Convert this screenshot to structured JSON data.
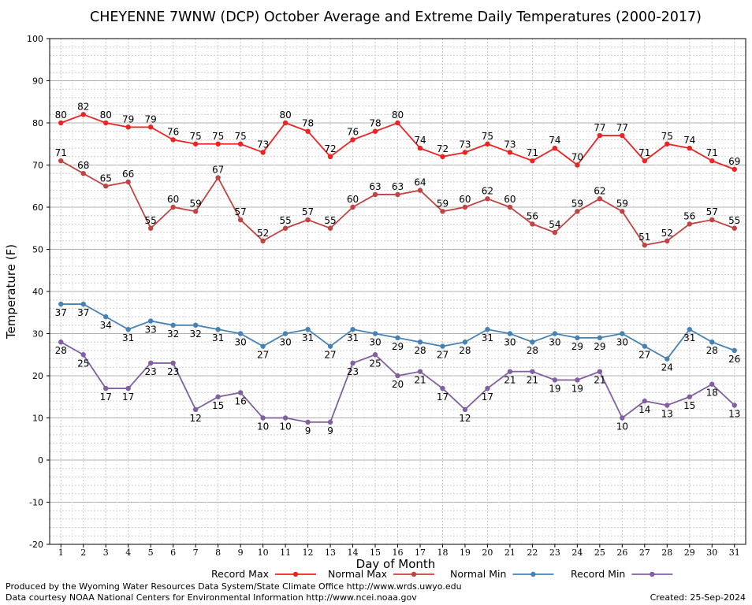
{
  "chart_data": {
    "type": "line",
    "title": "CHEYENNE 7WNW (DCP) October Average and Extreme Daily Temperatures (2000-2017)",
    "xlabel": "Day of Month",
    "ylabel": "Temperature (F)",
    "ylim": [
      -20,
      100
    ],
    "yticks": [
      -20,
      -10,
      0,
      10,
      20,
      30,
      40,
      50,
      60,
      70,
      80,
      90,
      100
    ],
    "x": [
      1,
      2,
      3,
      4,
      5,
      6,
      7,
      8,
      9,
      10,
      11,
      12,
      13,
      14,
      15,
      16,
      17,
      18,
      19,
      20,
      21,
      22,
      23,
      24,
      25,
      26,
      27,
      28,
      29,
      30,
      31
    ],
    "xlim": [
      0.5,
      31.5
    ],
    "grid": true,
    "legend_position": "bottom",
    "series": [
      {
        "name": "Record Max",
        "color": "#ee2222",
        "values": [
          80,
          82,
          80,
          79,
          79,
          76,
          75,
          75,
          75,
          73,
          80,
          78,
          72,
          76,
          78,
          80,
          74,
          72,
          73,
          75,
          73,
          71,
          74,
          70,
          77,
          77,
          71,
          75,
          74,
          71,
          69
        ]
      },
      {
        "name": "Normal Max",
        "color": "#c04444",
        "values": [
          71,
          68,
          65,
          66,
          55,
          60,
          59,
          67,
          57,
          52,
          55,
          57,
          55,
          60,
          63,
          63,
          64,
          59,
          60,
          62,
          60,
          56,
          54,
          59,
          62,
          59,
          51,
          52,
          56,
          57,
          55
        ]
      },
      {
        "name": "Normal Min",
        "color": "#4682b4",
        "values": [
          37,
          37,
          34,
          31,
          33,
          32,
          32,
          31,
          30,
          27,
          30,
          31,
          27,
          31,
          30,
          29,
          28,
          27,
          28,
          31,
          30,
          28,
          30,
          29,
          29,
          30,
          27,
          24,
          31,
          28,
          26
        ]
      },
      {
        "name": "Record Min",
        "color": "#8060a0",
        "values": [
          28,
          25,
          17,
          17,
          23,
          23,
          12,
          15,
          16,
          10,
          10,
          9,
          9,
          23,
          25,
          20,
          21,
          17,
          12,
          17,
          21,
          21,
          19,
          19,
          21,
          10,
          14,
          13,
          15,
          18,
          13
        ]
      }
    ]
  },
  "footer": {
    "produced_by": "Produced by the Wyoming Water Resources Data System/State Climate Office http://www.wrds.uwyo.edu",
    "courtesy": "Data courtesy NOAA National Centers for Environmental Information http://www.ncei.noaa.gov",
    "created": "Created:  25-Sep-2024"
  }
}
